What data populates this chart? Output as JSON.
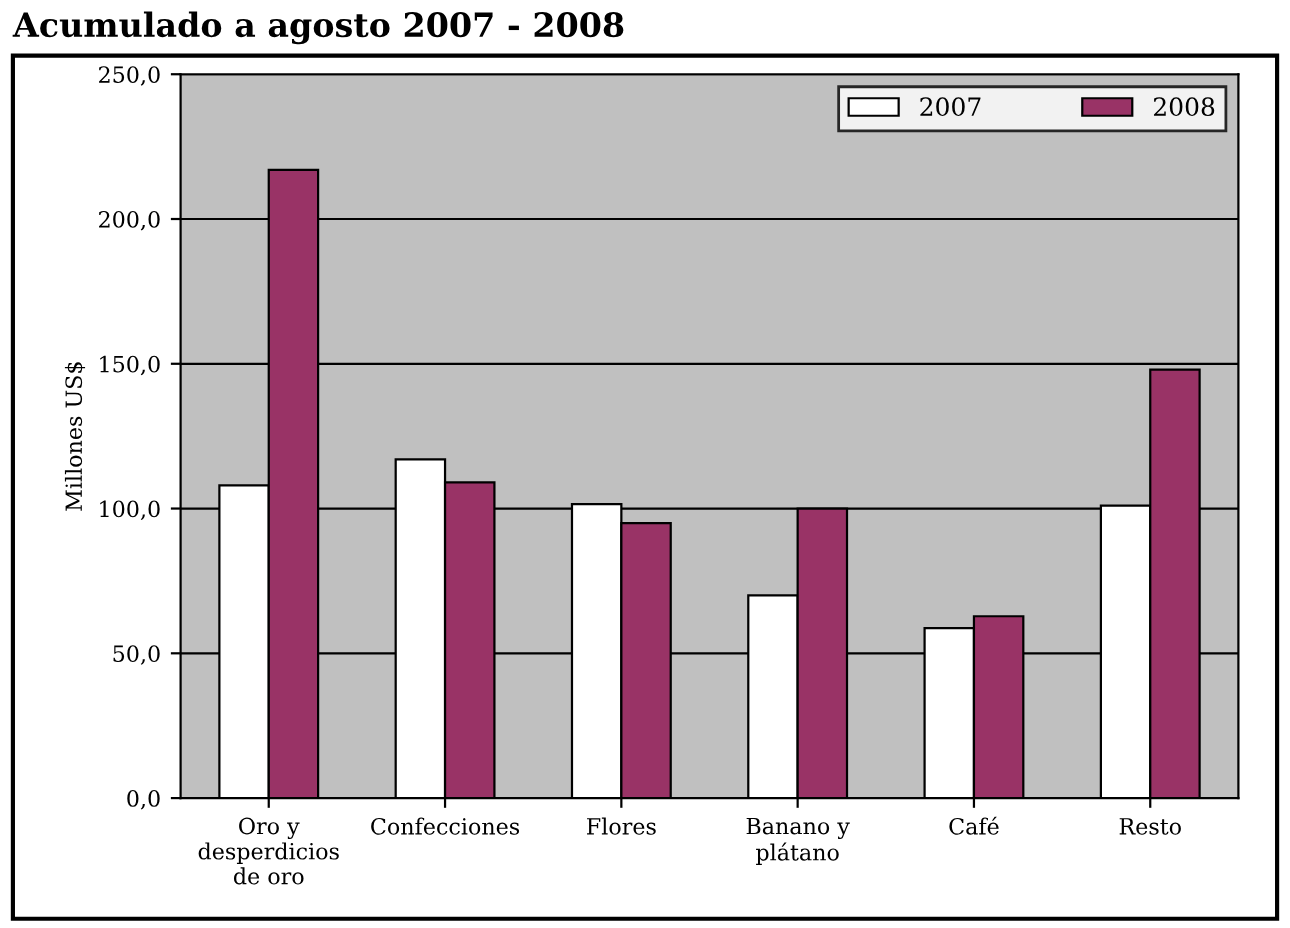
{
  "chart_data": {
    "type": "bar",
    "title": "Acumulado a agosto 2007 - 2008",
    "ylabel": "Millones US$",
    "categories": [
      "Oro y\ndesperdicios\nde oro",
      "Confecciones",
      "Flores",
      "Banano y\nplátano",
      "Café",
      "Resto"
    ],
    "series": [
      {
        "name": "2007",
        "color": "#ffffff",
        "values": [
          108,
          117,
          101.5,
          70,
          58.7,
          101
        ]
      },
      {
        "name": "2008",
        "color": "#993366",
        "values": [
          217,
          109,
          95,
          100,
          62.8,
          148
        ]
      }
    ],
    "ylim": [
      0,
      250
    ],
    "yticks": [
      {
        "value": 0,
        "label": "0,0"
      },
      {
        "value": 50,
        "label": "50,0"
      },
      {
        "value": 100,
        "label": "100,0"
      },
      {
        "value": 150,
        "label": "150,0"
      },
      {
        "value": 200,
        "label": "200,0"
      },
      {
        "value": 250,
        "label": "250,0"
      }
    ],
    "grid": "y",
    "legend": "top right"
  }
}
